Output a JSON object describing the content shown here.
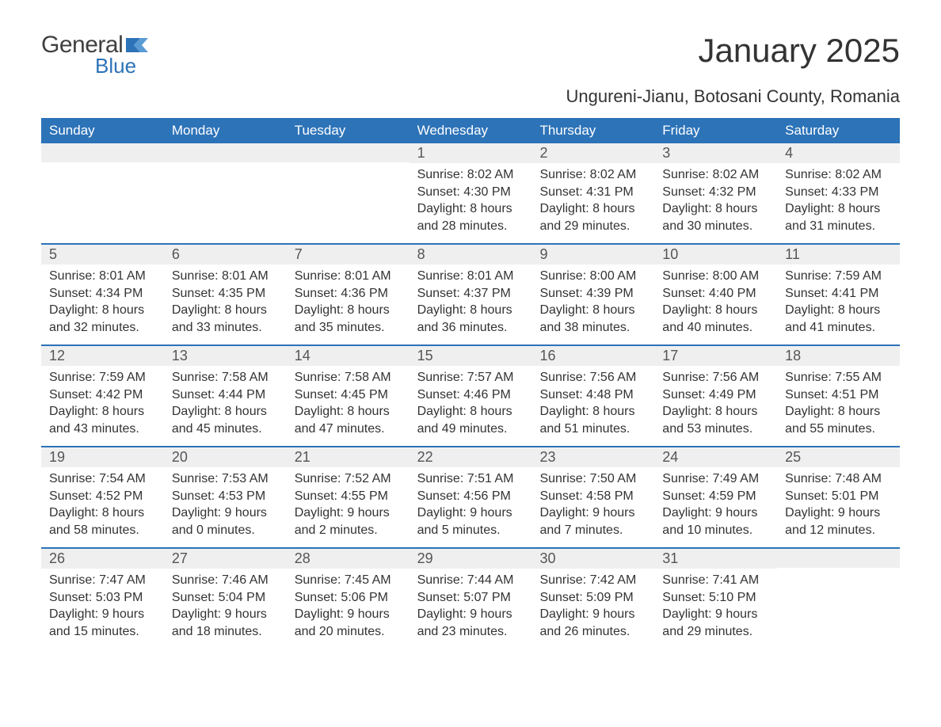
{
  "logo": {
    "general": "General",
    "blue": "Blue",
    "flag_color": "#2d73b8"
  },
  "title": "January 2025",
  "subtitle": "Ungureni-Jianu, Botosani County, Romania",
  "header_bg": "#2d73b8",
  "daynum_bg": "#efefef",
  "border_color": "#2d73b8",
  "day_headers": [
    "Sunday",
    "Monday",
    "Tuesday",
    "Wednesday",
    "Thursday",
    "Friday",
    "Saturday"
  ],
  "weeks": [
    [
      null,
      null,
      null,
      {
        "n": "1",
        "sr": "Sunrise: 8:02 AM",
        "ss": "Sunset: 4:30 PM",
        "dl": "Daylight: 8 hours and 28 minutes."
      },
      {
        "n": "2",
        "sr": "Sunrise: 8:02 AM",
        "ss": "Sunset: 4:31 PM",
        "dl": "Daylight: 8 hours and 29 minutes."
      },
      {
        "n": "3",
        "sr": "Sunrise: 8:02 AM",
        "ss": "Sunset: 4:32 PM",
        "dl": "Daylight: 8 hours and 30 minutes."
      },
      {
        "n": "4",
        "sr": "Sunrise: 8:02 AM",
        "ss": "Sunset: 4:33 PM",
        "dl": "Daylight: 8 hours and 31 minutes."
      }
    ],
    [
      {
        "n": "5",
        "sr": "Sunrise: 8:01 AM",
        "ss": "Sunset: 4:34 PM",
        "dl": "Daylight: 8 hours and 32 minutes."
      },
      {
        "n": "6",
        "sr": "Sunrise: 8:01 AM",
        "ss": "Sunset: 4:35 PM",
        "dl": "Daylight: 8 hours and 33 minutes."
      },
      {
        "n": "7",
        "sr": "Sunrise: 8:01 AM",
        "ss": "Sunset: 4:36 PM",
        "dl": "Daylight: 8 hours and 35 minutes."
      },
      {
        "n": "8",
        "sr": "Sunrise: 8:01 AM",
        "ss": "Sunset: 4:37 PM",
        "dl": "Daylight: 8 hours and 36 minutes."
      },
      {
        "n": "9",
        "sr": "Sunrise: 8:00 AM",
        "ss": "Sunset: 4:39 PM",
        "dl": "Daylight: 8 hours and 38 minutes."
      },
      {
        "n": "10",
        "sr": "Sunrise: 8:00 AM",
        "ss": "Sunset: 4:40 PM",
        "dl": "Daylight: 8 hours and 40 minutes."
      },
      {
        "n": "11",
        "sr": "Sunrise: 7:59 AM",
        "ss": "Sunset: 4:41 PM",
        "dl": "Daylight: 8 hours and 41 minutes."
      }
    ],
    [
      {
        "n": "12",
        "sr": "Sunrise: 7:59 AM",
        "ss": "Sunset: 4:42 PM",
        "dl": "Daylight: 8 hours and 43 minutes."
      },
      {
        "n": "13",
        "sr": "Sunrise: 7:58 AM",
        "ss": "Sunset: 4:44 PM",
        "dl": "Daylight: 8 hours and 45 minutes."
      },
      {
        "n": "14",
        "sr": "Sunrise: 7:58 AM",
        "ss": "Sunset: 4:45 PM",
        "dl": "Daylight: 8 hours and 47 minutes."
      },
      {
        "n": "15",
        "sr": "Sunrise: 7:57 AM",
        "ss": "Sunset: 4:46 PM",
        "dl": "Daylight: 8 hours and 49 minutes."
      },
      {
        "n": "16",
        "sr": "Sunrise: 7:56 AM",
        "ss": "Sunset: 4:48 PM",
        "dl": "Daylight: 8 hours and 51 minutes."
      },
      {
        "n": "17",
        "sr": "Sunrise: 7:56 AM",
        "ss": "Sunset: 4:49 PM",
        "dl": "Daylight: 8 hours and 53 minutes."
      },
      {
        "n": "18",
        "sr": "Sunrise: 7:55 AM",
        "ss": "Sunset: 4:51 PM",
        "dl": "Daylight: 8 hours and 55 minutes."
      }
    ],
    [
      {
        "n": "19",
        "sr": "Sunrise: 7:54 AM",
        "ss": "Sunset: 4:52 PM",
        "dl": "Daylight: 8 hours and 58 minutes."
      },
      {
        "n": "20",
        "sr": "Sunrise: 7:53 AM",
        "ss": "Sunset: 4:53 PM",
        "dl": "Daylight: 9 hours and 0 minutes."
      },
      {
        "n": "21",
        "sr": "Sunrise: 7:52 AM",
        "ss": "Sunset: 4:55 PM",
        "dl": "Daylight: 9 hours and 2 minutes."
      },
      {
        "n": "22",
        "sr": "Sunrise: 7:51 AM",
        "ss": "Sunset: 4:56 PM",
        "dl": "Daylight: 9 hours and 5 minutes."
      },
      {
        "n": "23",
        "sr": "Sunrise: 7:50 AM",
        "ss": "Sunset: 4:58 PM",
        "dl": "Daylight: 9 hours and 7 minutes."
      },
      {
        "n": "24",
        "sr": "Sunrise: 7:49 AM",
        "ss": "Sunset: 4:59 PM",
        "dl": "Daylight: 9 hours and 10 minutes."
      },
      {
        "n": "25",
        "sr": "Sunrise: 7:48 AM",
        "ss": "Sunset: 5:01 PM",
        "dl": "Daylight: 9 hours and 12 minutes."
      }
    ],
    [
      {
        "n": "26",
        "sr": "Sunrise: 7:47 AM",
        "ss": "Sunset: 5:03 PM",
        "dl": "Daylight: 9 hours and 15 minutes."
      },
      {
        "n": "27",
        "sr": "Sunrise: 7:46 AM",
        "ss": "Sunset: 5:04 PM",
        "dl": "Daylight: 9 hours and 18 minutes."
      },
      {
        "n": "28",
        "sr": "Sunrise: 7:45 AM",
        "ss": "Sunset: 5:06 PM",
        "dl": "Daylight: 9 hours and 20 minutes."
      },
      {
        "n": "29",
        "sr": "Sunrise: 7:44 AM",
        "ss": "Sunset: 5:07 PM",
        "dl": "Daylight: 9 hours and 23 minutes."
      },
      {
        "n": "30",
        "sr": "Sunrise: 7:42 AM",
        "ss": "Sunset: 5:09 PM",
        "dl": "Daylight: 9 hours and 26 minutes."
      },
      {
        "n": "31",
        "sr": "Sunrise: 7:41 AM",
        "ss": "Sunset: 5:10 PM",
        "dl": "Daylight: 9 hours and 29 minutes."
      },
      null
    ]
  ]
}
